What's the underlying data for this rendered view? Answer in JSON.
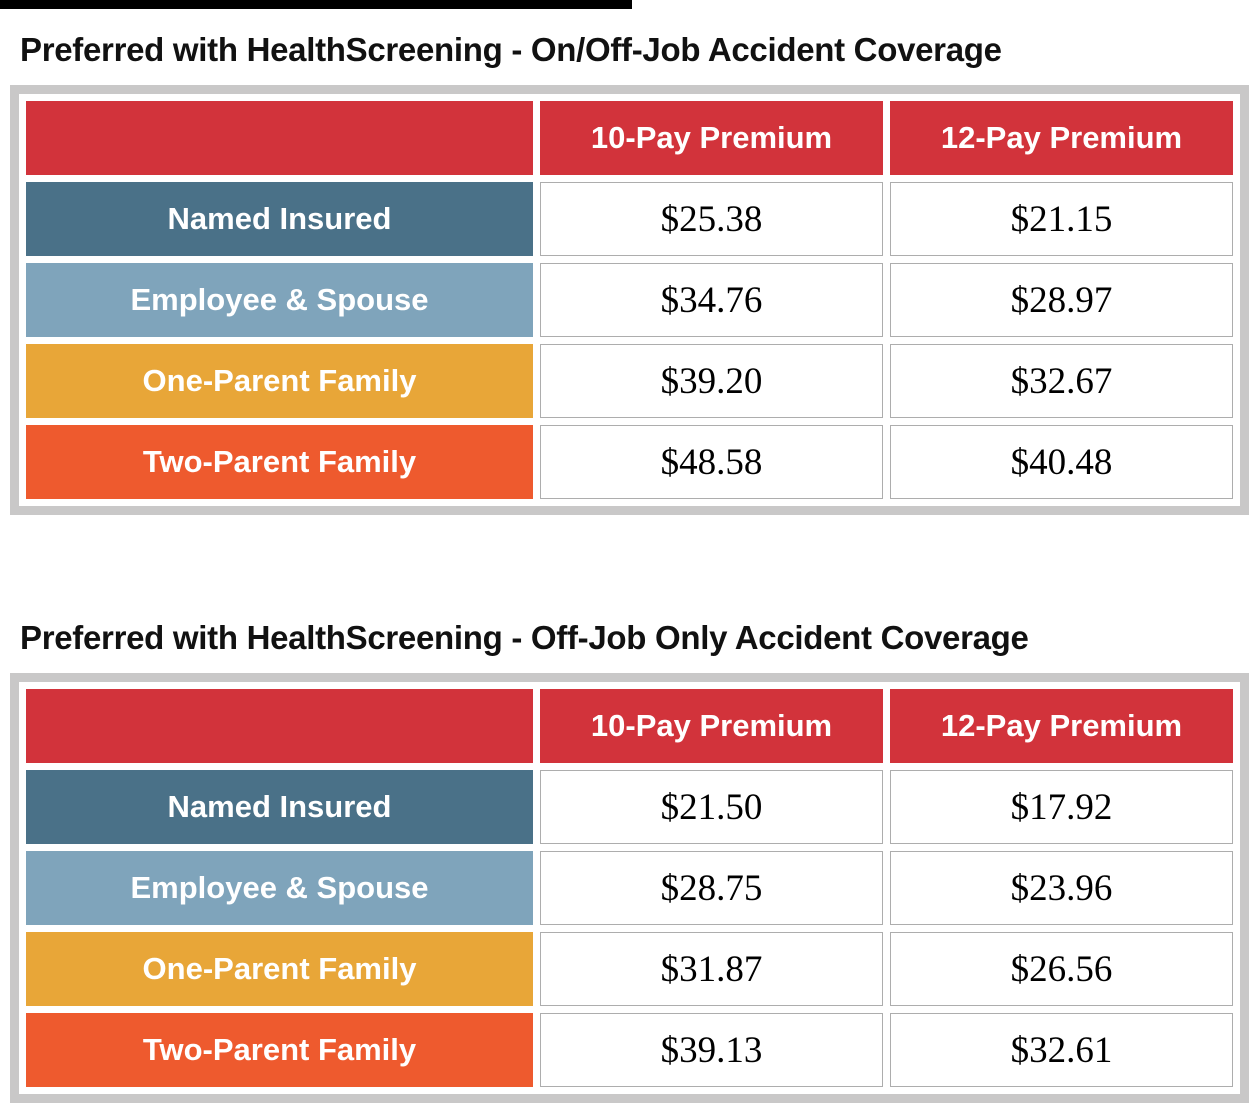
{
  "colors": {
    "header_red": "#d2333b",
    "row_named_insured": "#4a7188",
    "row_employee_spouse": "#7fa4bb",
    "row_one_parent": "#e8a638",
    "row_two_parent": "#ee5a2e",
    "frame_gray": "#c9c8c8",
    "cell_border": "#adadad",
    "label_text": "#ffffff",
    "value_text": "#000000",
    "top_rule_black": "#000000"
  },
  "tables": [
    {
      "title": "Preferred with HealthScreening - On/Off-Job Accident Coverage",
      "columns": [
        "",
        "10-Pay Premium",
        "12-Pay Premium"
      ],
      "rows": [
        {
          "label": "Named Insured",
          "color": "#4a7188",
          "values": [
            "$25.38",
            "$21.15"
          ]
        },
        {
          "label": "Employee & Spouse",
          "color": "#7fa4bb",
          "values": [
            "$34.76",
            "$28.97"
          ]
        },
        {
          "label": "One-Parent Family",
          "color": "#e8a638",
          "values": [
            "$39.20",
            "$32.67"
          ]
        },
        {
          "label": "Two-Parent Family",
          "color": "#ee5a2e",
          "values": [
            "$48.58",
            "$40.48"
          ]
        }
      ]
    },
    {
      "title": "Preferred with HealthScreening - Off-Job Only Accident Coverage",
      "columns": [
        "",
        "10-Pay Premium",
        "12-Pay Premium"
      ],
      "rows": [
        {
          "label": "Named Insured",
          "color": "#4a7188",
          "values": [
            "$21.50",
            "$17.92"
          ]
        },
        {
          "label": "Employee & Spouse",
          "color": "#7fa4bb",
          "values": [
            "$28.75",
            "$23.96"
          ]
        },
        {
          "label": "One-Parent Family",
          "color": "#e8a638",
          "values": [
            "$31.87",
            "$26.56"
          ]
        },
        {
          "label": "Two-Parent Family",
          "color": "#ee5a2e",
          "values": [
            "$39.13",
            "$32.61"
          ]
        }
      ]
    }
  ]
}
